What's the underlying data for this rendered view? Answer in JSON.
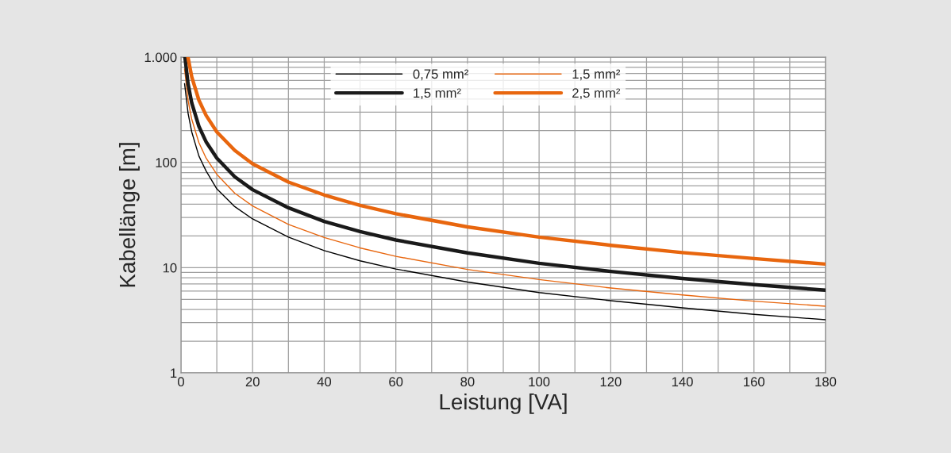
{
  "chart_data": {
    "type": "line",
    "xlabel": "Leistung [VA]",
    "ylabel": "Kabellänge [m]",
    "log": "y",
    "grid": true,
    "legend": "top right",
    "line_style": "solid",
    "marker": "none",
    "xlim": [
      0,
      180
    ],
    "xticks": [
      0,
      {
        "value": 10,
        "label": null
      },
      20,
      {
        "value": 30,
        "label": null
      },
      40,
      {
        "value": 50,
        "label": null
      },
      60,
      {
        "value": 70,
        "label": null
      },
      80,
      {
        "value": 90,
        "label": null
      },
      100,
      {
        "value": 110,
        "label": null
      },
      120,
      {
        "value": 130,
        "label": null
      },
      140,
      {
        "value": 150,
        "label": null
      },
      160,
      {
        "value": 170,
        "label": null
      },
      180
    ],
    "ylim": [
      1,
      1000
    ],
    "yticks": [
      1,
      {
        "value": 2,
        "label": null
      },
      {
        "value": 3,
        "label": null
      },
      {
        "value": 4,
        "label": null
      },
      {
        "value": 5,
        "label": null
      },
      {
        "value": 6,
        "label": null
      },
      {
        "value": 7,
        "label": null
      },
      {
        "value": 8,
        "label": null
      },
      {
        "value": 9,
        "label": null
      },
      10,
      {
        "value": 20,
        "label": null
      },
      {
        "value": 30,
        "label": null
      },
      {
        "value": 40,
        "label": null
      },
      {
        "value": 50,
        "label": null
      },
      {
        "value": 60,
        "label": null
      },
      {
        "value": 70,
        "label": null
      },
      {
        "value": 80,
        "label": null
      },
      {
        "value": 90,
        "label": null
      },
      100,
      {
        "value": 200,
        "label": null
      },
      {
        "value": 300,
        "label": null
      },
      {
        "value": 400,
        "label": null
      },
      {
        "value": 500,
        "label": null
      },
      {
        "value": 600,
        "label": null
      },
      {
        "value": 700,
        "label": null
      },
      {
        "value": 800,
        "label": null
      },
      {
        "value": 900,
        "label": null
      },
      {
        "value": 1000,
        "label": "1.000"
      }
    ],
    "series": [
      {
        "name": "0,75 mm²",
        "color": "#000000",
        "x": [
          1,
          2,
          3,
          5,
          7,
          10,
          15,
          20,
          30,
          40,
          50,
          60,
          80,
          100,
          120,
          140,
          160,
          180
        ],
        "values": [
          560,
          290,
          195,
          115,
          83,
          56,
          38,
          29,
          19.5,
          14.5,
          11.6,
          9.7,
          7.3,
          5.8,
          4.85,
          4.15,
          3.6,
          3.2
        ]
      },
      {
        "name": "1,5 mm²",
        "color": "#e8660e",
        "x": [
          1,
          2,
          3,
          5,
          7,
          10,
          15,
          20,
          30,
          40,
          50,
          60,
          80,
          100,
          120,
          140,
          160,
          180
        ],
        "values": [
          770,
          385,
          257,
          154,
          110,
          77,
          51,
          38.5,
          25.7,
          19.3,
          15.4,
          12.8,
          9.6,
          7.7,
          6.4,
          5.5,
          4.8,
          4.3
        ]
      },
      {
        "name": "1,5 mm²",
        "color": "#1a1a1a",
        "x": [
          1.1,
          2,
          3,
          5,
          7,
          10,
          15,
          20,
          30,
          40,
          50,
          60,
          80,
          100,
          120,
          140,
          160,
          180
        ],
        "values": [
          1000,
          550,
          367,
          220,
          157,
          110,
          73,
          55,
          37,
          27.5,
          22,
          18.3,
          13.8,
          11,
          9.2,
          7.9,
          6.9,
          6.1
        ]
      },
      {
        "name": "2,5 mm²",
        "color": "#e8660e",
        "x": [
          1.95,
          3,
          5,
          7,
          10,
          15,
          20,
          30,
          40,
          50,
          60,
          80,
          100,
          120,
          140,
          160,
          180
        ],
        "values": [
          1000,
          650,
          390,
          280,
          195,
          130,
          97,
          65,
          49,
          39,
          32.5,
          24.4,
          19.5,
          16.3,
          13.9,
          12.2,
          10.8
        ]
      }
    ]
  }
}
